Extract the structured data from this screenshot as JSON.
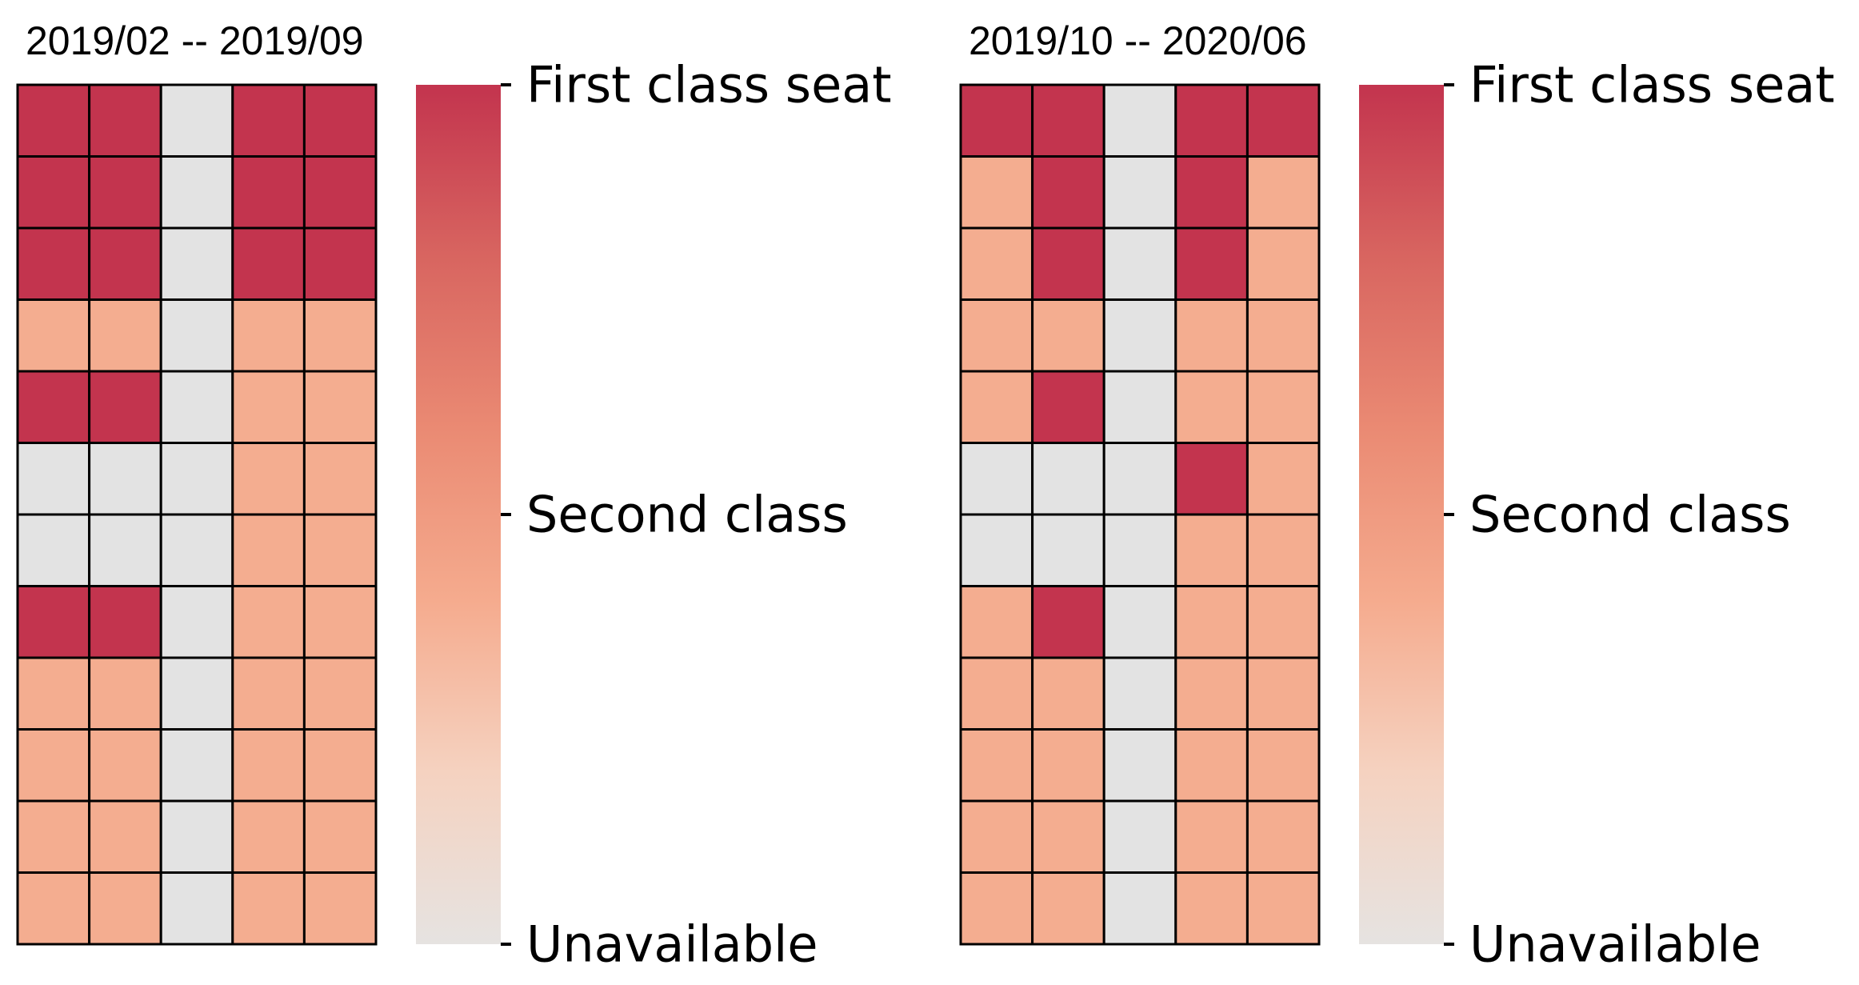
{
  "chart_data": [
    {
      "type": "heatmap",
      "title": "2019/02 -- 2019/09",
      "levels": [
        0,
        1,
        2
      ],
      "colorbar": {
        "ticks": [
          {
            "value": 2,
            "label": "First class seat"
          },
          {
            "value": 1,
            "label": "Second class"
          },
          {
            "value": 0,
            "label": "Unavailable"
          }
        ]
      },
      "rows": 12,
      "cols": 5,
      "grid": [
        [
          2,
          2,
          0,
          2,
          2
        ],
        [
          2,
          2,
          0,
          2,
          2
        ],
        [
          2,
          2,
          0,
          2,
          2
        ],
        [
          1,
          1,
          0,
          1,
          1
        ],
        [
          2,
          2,
          0,
          1,
          1
        ],
        [
          0,
          0,
          0,
          1,
          1
        ],
        [
          0,
          0,
          0,
          1,
          1
        ],
        [
          2,
          2,
          0,
          1,
          1
        ],
        [
          1,
          1,
          0,
          1,
          1
        ],
        [
          1,
          1,
          0,
          1,
          1
        ],
        [
          1,
          1,
          0,
          1,
          1
        ],
        [
          1,
          1,
          0,
          1,
          1
        ]
      ]
    },
    {
      "type": "heatmap",
      "title": "2019/10 -- 2020/06",
      "levels": [
        0,
        1,
        2
      ],
      "colorbar": {
        "ticks": [
          {
            "value": 2,
            "label": "First class seat"
          },
          {
            "value": 1,
            "label": "Second class"
          },
          {
            "value": 0,
            "label": "Unavailable"
          }
        ]
      },
      "rows": 12,
      "cols": 5,
      "grid": [
        [
          2,
          2,
          0,
          2,
          2
        ],
        [
          1,
          2,
          0,
          2,
          1
        ],
        [
          1,
          2,
          0,
          2,
          1
        ],
        [
          1,
          1,
          0,
          1,
          1
        ],
        [
          1,
          2,
          0,
          1,
          1
        ],
        [
          0,
          0,
          0,
          2,
          1
        ],
        [
          0,
          0,
          0,
          1,
          1
        ],
        [
          1,
          2,
          0,
          1,
          1
        ],
        [
          1,
          1,
          0,
          1,
          1
        ],
        [
          1,
          1,
          0,
          1,
          1
        ],
        [
          1,
          1,
          0,
          1,
          1
        ],
        [
          1,
          1,
          0,
          1,
          1
        ]
      ]
    }
  ],
  "colors": {
    "level_0": "#e3e3e3",
    "level_1": "#f4ad90",
    "level_2": "#c3344e",
    "colorbar_stops": [
      "#e6e3e1",
      "#f5d2c0",
      "#f5ab8e",
      "#ea8a73",
      "#d86560",
      "#c3344e"
    ],
    "grid_line": "#000000"
  }
}
